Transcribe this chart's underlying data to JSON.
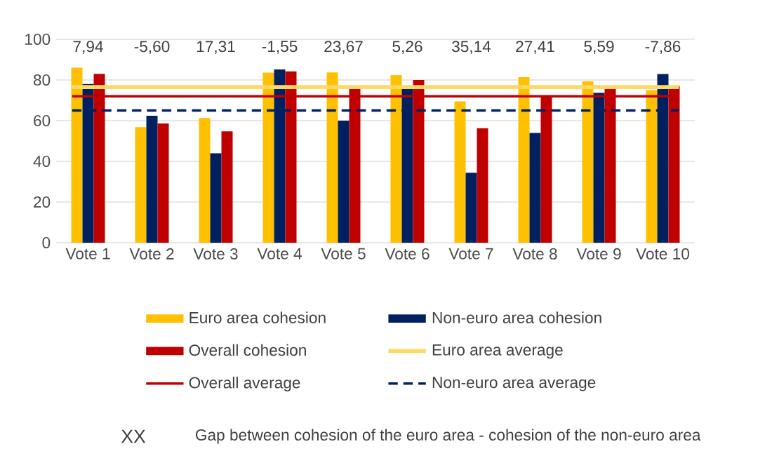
{
  "chart_data": {
    "type": "bar",
    "categories": [
      "Vote 1",
      "Vote 2",
      "Vote 3",
      "Vote 4",
      "Vote 5",
      "Vote 6",
      "Vote 7",
      "Vote 8",
      "Vote 9",
      "Vote 10"
    ],
    "series": [
      {
        "name": "Euro area cohesion",
        "color": "#ffc000",
        "values": [
          86,
          56.8,
          61.3,
          83.6,
          83.7,
          82.4,
          69.5,
          81.4,
          79.3,
          75
        ]
      },
      {
        "name": "Non-euro area cohesion",
        "color": "#002060",
        "values": [
          78,
          62.4,
          44,
          85.2,
          60,
          77.1,
          34.4,
          54,
          73.7,
          82.9
        ]
      },
      {
        "name": "Overall cohesion",
        "color": "#c00000",
        "values": [
          83,
          58.6,
          54.7,
          84.2,
          76,
          80,
          56.3,
          72,
          76.4,
          77
        ]
      }
    ],
    "ref_lines": [
      {
        "axis": "y",
        "value": 76.5,
        "label": "Euro area average",
        "color": "#ffd966",
        "line_style": "solid"
      },
      {
        "axis": "y",
        "value": 72,
        "label": "Overall average",
        "color": "#c00000",
        "line_style": "solid"
      },
      {
        "axis": "y",
        "value": 65,
        "label": "Non-euro area average",
        "color": "#002060",
        "line_style": "dashed"
      }
    ],
    "annotations": [
      "7,94",
      "-5,60",
      "17,31",
      "-1,55",
      "23,67",
      "5,26",
      "35,14",
      "27,41",
      "5,59",
      "-7,86",
      "XX",
      "Gap  between cohesion of the euro area - cohesion of the non-euro area"
    ],
    "ylim": [
      0,
      100
    ],
    "yticks": [
      0,
      20,
      40,
      60,
      80,
      100
    ],
    "grid": "y",
    "legend": "bottom"
  }
}
